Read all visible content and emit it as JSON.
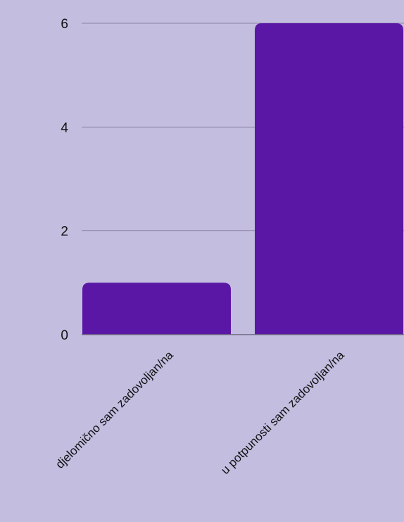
{
  "colors": {
    "background": "#c3bde0",
    "bar": "#5a17a6",
    "grid": "#8a83a6",
    "axis": "#6e6a80",
    "text": "#111111"
  },
  "chart_data": {
    "type": "bar",
    "categories": [
      "djelomično sam zadovoljan/na",
      "u potpunosti sam zadovoljan/na"
    ],
    "values": [
      1,
      6
    ],
    "title": "",
    "xlabel": "",
    "ylabel": "",
    "ylim": [
      0,
      6
    ],
    "yticks": [
      0,
      2,
      4,
      6
    ],
    "grid": true,
    "legend": "none"
  }
}
